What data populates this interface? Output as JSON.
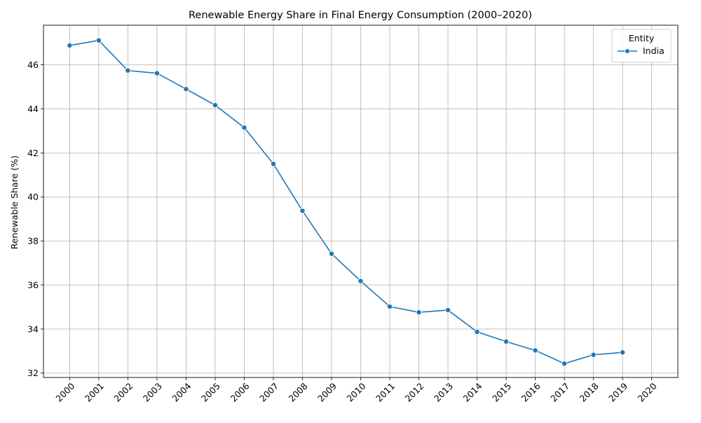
{
  "chart_data": {
    "type": "line",
    "title": "Renewable Energy Share in Final Energy Consumption (2000–2020)",
    "xlabel": "",
    "ylabel": "Renewable Share (%)",
    "x": [
      "2000",
      "2001",
      "2002",
      "2003",
      "2004",
      "2005",
      "2006",
      "2007",
      "2008",
      "2009",
      "2010",
      "2011",
      "2012",
      "2013",
      "2014",
      "2015",
      "2016",
      "2017",
      "2018",
      "2019",
      "2020"
    ],
    "xlim": [
      2000,
      2020
    ],
    "ylim": [
      31.8,
      47.8
    ],
    "yticks": [
      32,
      34,
      36,
      38,
      40,
      42,
      44,
      46
    ],
    "grid": true,
    "legend": {
      "title": "Entity",
      "placement": "top-right"
    },
    "series": [
      {
        "name": "India",
        "color": "#1f77b4",
        "marker": "circle",
        "points": [
          {
            "x": 2000,
            "y": 46.88
          },
          {
            "x": 2001,
            "y": 47.11
          },
          {
            "x": 2002,
            "y": 45.74
          },
          {
            "x": 2003,
            "y": 45.62
          },
          {
            "x": 2004,
            "y": 44.9
          },
          {
            "x": 2005,
            "y": 44.17
          },
          {
            "x": 2006,
            "y": 43.15
          },
          {
            "x": 2007,
            "y": 41.5
          },
          {
            "x": 2008,
            "y": 39.37
          },
          {
            "x": 2009,
            "y": 37.42
          },
          {
            "x": 2010,
            "y": 36.18
          },
          {
            "x": 2011,
            "y": 35.02
          },
          {
            "x": 2012,
            "y": 34.76
          },
          {
            "x": 2013,
            "y": 34.86
          },
          {
            "x": 2014,
            "y": 33.87
          },
          {
            "x": 2015,
            "y": 33.43
          },
          {
            "x": 2016,
            "y": 33.03
          },
          {
            "x": 2017,
            "y": 32.43
          },
          {
            "x": 2018,
            "y": 32.83
          },
          {
            "x": 2019,
            "y": 32.94
          }
        ]
      }
    ]
  }
}
